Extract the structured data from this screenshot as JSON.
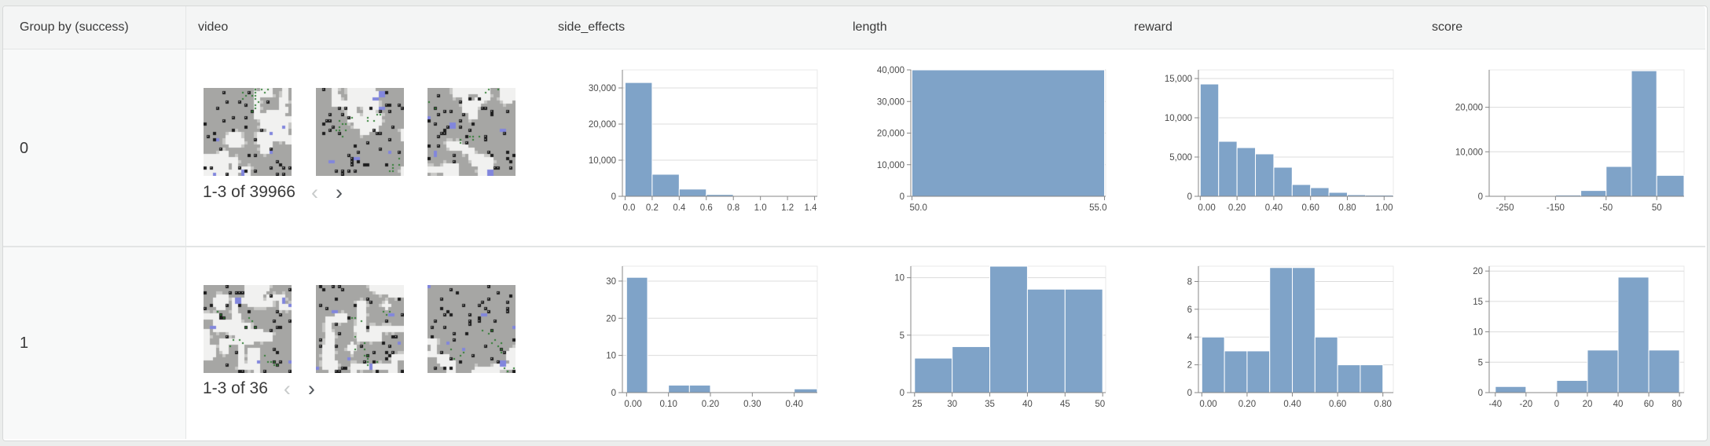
{
  "table": {
    "columns": [
      "Group by (success)",
      "video",
      "side_effects",
      "length",
      "reward",
      "score"
    ],
    "rows": [
      {
        "group": "0",
        "video": {
          "caption": "1-3 of 39966",
          "prev_glyph": "‹",
          "next_glyph": "›",
          "visible_thumbnails": 3
        }
      },
      {
        "group": "1",
        "video": {
          "caption": "1-3 of 36",
          "prev_glyph": "‹",
          "next_glyph": "›",
          "visible_thumbnails": 3
        }
      }
    ]
  },
  "colors": {
    "bar_fill": "#7fa3c8",
    "grid": "#dcdcdc",
    "domain": "#878787",
    "tick_text": "#4b4b4b",
    "plot_frame": "#e8e8e8",
    "header_bg": "#f4f5f5",
    "group_col_bg": "#f8f9f9"
  },
  "chart_data": [
    {
      "type": "bar",
      "group": "0",
      "field": "side_effects",
      "xlim": [
        -0.02,
        1.42
      ],
      "ylim": [
        0,
        35000
      ],
      "xticks": [
        [
          0,
          "0.0"
        ],
        [
          0.2,
          "0.2"
        ],
        [
          0.4,
          "0.4"
        ],
        [
          0.6,
          "0.6"
        ],
        [
          0.8,
          "0.8"
        ],
        [
          1.0,
          "1.0"
        ],
        [
          1.2,
          "1.2"
        ],
        [
          1.4,
          "1.4"
        ]
      ],
      "yticks": [
        [
          0,
          "0"
        ],
        [
          10000,
          "10,000"
        ],
        [
          20000,
          "20,000"
        ],
        [
          30000,
          "30,000"
        ]
      ],
      "bins": [
        [
          0,
          0.2,
          31500
        ],
        [
          0.2,
          0.4,
          6100
        ],
        [
          0.4,
          0.6,
          2000
        ],
        [
          0.6,
          0.8,
          500
        ],
        [
          0.8,
          1.0,
          150
        ],
        [
          1.0,
          1.2,
          80
        ],
        [
          1.2,
          1.4,
          60
        ]
      ]
    },
    {
      "type": "bar",
      "group": "0",
      "field": "length",
      "xlim": [
        49.97,
        55.03
      ],
      "ylim": [
        0,
        40000
      ],
      "xticks": [
        [
          50,
          "50.0"
        ],
        [
          55,
          "55.0"
        ]
      ],
      "yticks": [
        [
          0,
          "0"
        ],
        [
          10000,
          "10,000"
        ],
        [
          20000,
          "20,000"
        ],
        [
          30000,
          "30,000"
        ],
        [
          40000,
          "40,000"
        ]
      ],
      "bins": [
        [
          50,
          55,
          40000
        ]
      ]
    },
    {
      "type": "bar",
      "group": "0",
      "field": "reward",
      "xlim": [
        -0.01,
        1.05
      ],
      "ylim": [
        0,
        16100
      ],
      "xticks": [
        [
          0,
          "0.00"
        ],
        [
          0.2,
          "0.20"
        ],
        [
          0.4,
          "0.40"
        ],
        [
          0.6,
          "0.60"
        ],
        [
          0.8,
          "0.80"
        ],
        [
          1.0,
          "1.00"
        ]
      ],
      "yticks": [
        [
          0,
          "0"
        ],
        [
          5000,
          "5,000"
        ],
        [
          10000,
          "10,000"
        ],
        [
          15000,
          "15,000"
        ]
      ],
      "bins": [
        [
          0,
          0.1,
          14300
        ],
        [
          0.1,
          0.2,
          7000
        ],
        [
          0.2,
          0.3,
          6200
        ],
        [
          0.3,
          0.4,
          5400
        ],
        [
          0.4,
          0.5,
          3700
        ],
        [
          0.5,
          0.6,
          1500
        ],
        [
          0.6,
          0.7,
          1100
        ],
        [
          0.7,
          0.8,
          500
        ],
        [
          0.8,
          0.9,
          200
        ],
        [
          0.9,
          1.05,
          150
        ]
      ]
    },
    {
      "type": "bar",
      "group": "0",
      "field": "score",
      "xlim": [
        -281,
        104
      ],
      "ylim": [
        0,
        28400
      ],
      "xticks": [
        [
          -250,
          "-250"
        ],
        [
          -150,
          "-150"
        ],
        [
          -50,
          "-50"
        ],
        [
          50,
          "50"
        ]
      ],
      "yticks": [
        [
          0,
          "0"
        ],
        [
          10000,
          "10,000"
        ],
        [
          20000,
          "20,000"
        ]
      ],
      "bins": [
        [
          -250,
          -200,
          150
        ],
        [
          -200,
          -150,
          150
        ],
        [
          -150,
          -100,
          280
        ],
        [
          -100,
          -50,
          1300
        ],
        [
          -50,
          0,
          6700
        ],
        [
          0,
          50,
          28200
        ],
        [
          50,
          104,
          4700
        ]
      ]
    },
    {
      "type": "bar",
      "group": "1",
      "field": "side_effects",
      "xlim": [
        -0.01,
        0.455
      ],
      "ylim": [
        0,
        34
      ],
      "xticks": [
        [
          0,
          "0.00"
        ],
        [
          0.1,
          "0.10"
        ],
        [
          0.2,
          "0.20"
        ],
        [
          0.3,
          "0.30"
        ],
        [
          0.4,
          "0.40"
        ]
      ],
      "yticks": [
        [
          0,
          "0"
        ],
        [
          10,
          "10"
        ],
        [
          20,
          "20"
        ],
        [
          30,
          "30"
        ]
      ],
      "bins": [
        [
          0,
          0.05,
          31
        ],
        [
          0.1,
          0.15,
          2
        ],
        [
          0.15,
          0.2,
          2
        ],
        [
          0.4,
          0.455,
          1
        ]
      ]
    },
    {
      "type": "bar",
      "group": "1",
      "field": "length",
      "xlim": [
        24.5,
        50.4
      ],
      "ylim": [
        0,
        11
      ],
      "xticks": [
        [
          25,
          "25"
        ],
        [
          30,
          "30"
        ],
        [
          35,
          "35"
        ],
        [
          40,
          "40"
        ],
        [
          45,
          "45"
        ],
        [
          50,
          "50"
        ]
      ],
      "yticks": [
        [
          0,
          "0"
        ],
        [
          5,
          "5"
        ],
        [
          10,
          "10"
        ]
      ],
      "bins": [
        [
          25,
          30,
          3
        ],
        [
          30,
          35,
          4
        ],
        [
          35,
          40,
          11
        ],
        [
          40,
          45,
          9
        ],
        [
          45,
          50,
          9
        ]
      ]
    },
    {
      "type": "bar",
      "group": "1",
      "field": "reward",
      "xlim": [
        -0.015,
        0.846
      ],
      "ylim": [
        0,
        9.1
      ],
      "xticks": [
        [
          0,
          "0.00"
        ],
        [
          0.2,
          "0.20"
        ],
        [
          0.4,
          "0.40"
        ],
        [
          0.6,
          "0.60"
        ],
        [
          0.8,
          "0.80"
        ]
      ],
      "yticks": [
        [
          0,
          "0"
        ],
        [
          2,
          "2"
        ],
        [
          4,
          "4"
        ],
        [
          6,
          "6"
        ],
        [
          8,
          "8"
        ]
      ],
      "bins": [
        [
          0,
          0.1,
          4
        ],
        [
          0.1,
          0.2,
          3
        ],
        [
          0.2,
          0.3,
          3
        ],
        [
          0.3,
          0.4,
          9
        ],
        [
          0.4,
          0.5,
          9
        ],
        [
          0.5,
          0.6,
          4
        ],
        [
          0.6,
          0.7,
          2
        ],
        [
          0.7,
          0.8,
          2
        ]
      ]
    },
    {
      "type": "bar",
      "group": "1",
      "field": "score",
      "xlim": [
        -44,
        83
      ],
      "ylim": [
        0,
        20.8
      ],
      "xticks": [
        [
          -40,
          "-40"
        ],
        [
          -20,
          "-20"
        ],
        [
          0,
          "0"
        ],
        [
          20,
          "20"
        ],
        [
          40,
          "40"
        ],
        [
          60,
          "60"
        ],
        [
          80,
          "80"
        ]
      ],
      "yticks": [
        [
          0,
          "0"
        ],
        [
          5,
          "5"
        ],
        [
          10,
          "10"
        ],
        [
          15,
          "15"
        ],
        [
          20,
          "20"
        ]
      ],
      "bins": [
        [
          -40,
          -20,
          1
        ],
        [
          0,
          20,
          2
        ],
        [
          20,
          40,
          7
        ],
        [
          40,
          60,
          19
        ],
        [
          60,
          80,
          7
        ]
      ]
    }
  ]
}
